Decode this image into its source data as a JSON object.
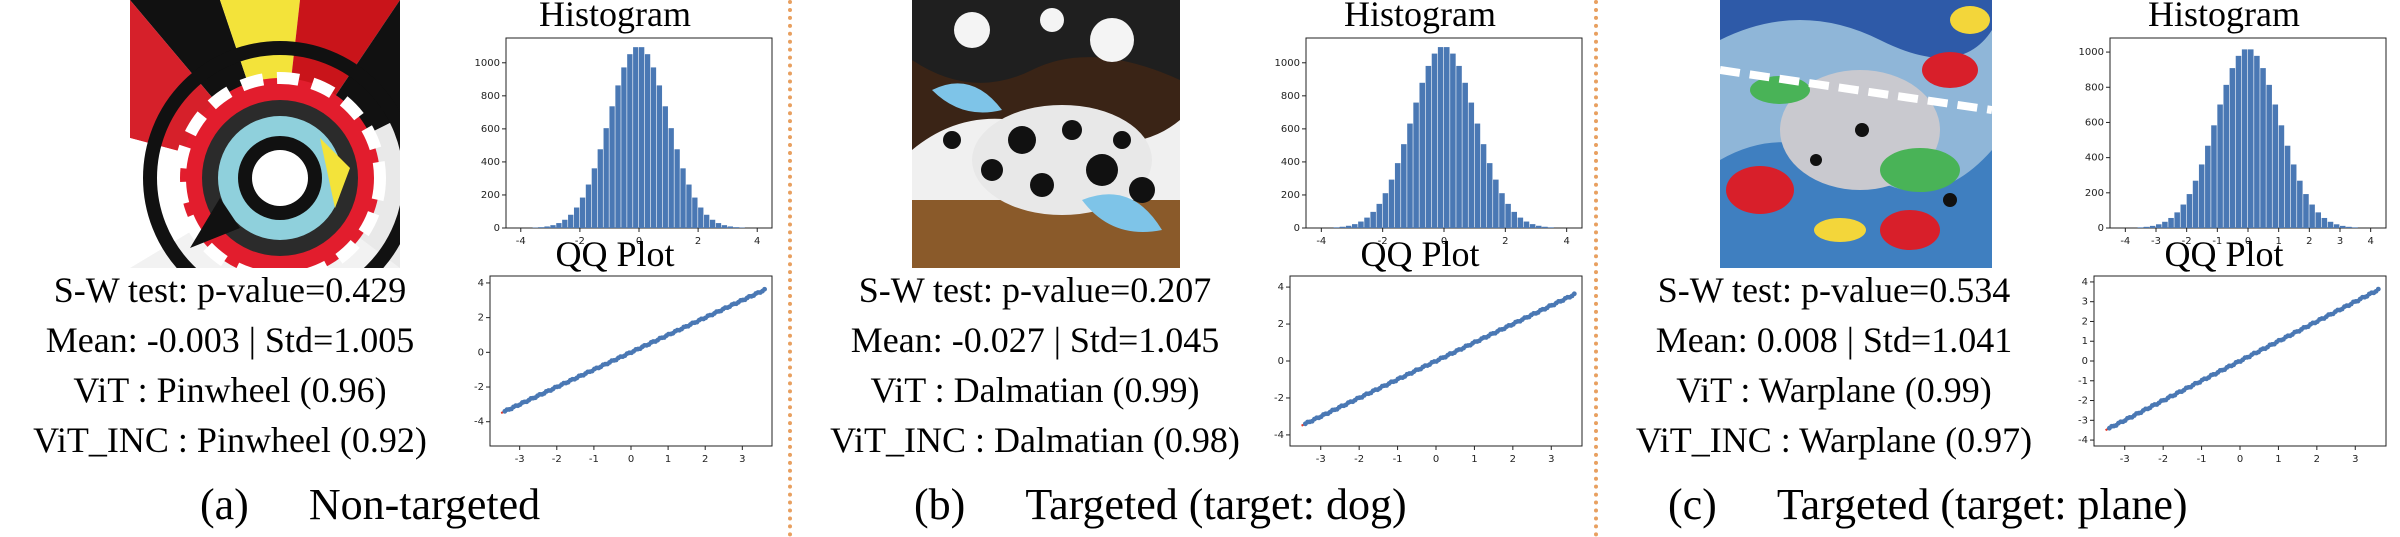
{
  "colors": {
    "bar": "#4a78b4",
    "qq_points": "#4a78b4",
    "qq_line": "#e23b2e",
    "divider": "#e8a060"
  },
  "panels": [
    {
      "image_subject": "pinwheel adversarial image",
      "histogram_title": "Histogram",
      "qq_title": "QQ Plot",
      "stats": {
        "sw": "S-W test: p-value=0.429",
        "mean_std": "Mean: -0.003 | Std=1.005",
        "vit": "ViT : Pinwheel (0.96)",
        "vit_inc": "ViT_INC : Pinwheel (0.92)"
      },
      "caption_letter": "(a)",
      "caption_text": "Non-targeted"
    },
    {
      "image_subject": "dalmatian adversarial image",
      "histogram_title": "Histogram",
      "qq_title": "QQ Plot",
      "stats": {
        "sw": "S-W test: p-value=0.207",
        "mean_std": "Mean: -0.027 | Std=1.045",
        "vit": "ViT : Dalmatian (0.99)",
        "vit_inc": "ViT_INC : Dalmatian (0.98)"
      },
      "caption_letter": "(b)",
      "caption_text": "Targeted (target: dog)"
    },
    {
      "image_subject": "warplane adversarial image",
      "histogram_title": "Histogram",
      "qq_title": "QQ Plot",
      "stats": {
        "sw": "S-W test: p-value=0.534",
        "mean_std": "Mean: 0.008 | Std=1.041",
        "vit": "ViT : Warplane (0.99)",
        "vit_inc": "ViT_INC : Warplane (0.97)"
      },
      "caption_letter": "(c)",
      "caption_text": "Targeted (target: plane)"
    }
  ],
  "chart_data": [
    {
      "type": "bar",
      "title": "Histogram",
      "panel": "a",
      "bins_center": 0,
      "bins_sd": 1.005,
      "peak": 1100,
      "xticks": [
        "-4",
        "-2",
        "0",
        "2",
        "4"
      ],
      "yticks": [
        "0",
        "200",
        "400",
        "600",
        "800",
        "1000"
      ],
      "xlim": [
        -4.5,
        4.5
      ],
      "ylim": [
        0,
        1150
      ]
    },
    {
      "type": "scatter",
      "title": "QQ Plot",
      "panel": "a",
      "xticks": [
        "-3",
        "-2",
        "-1",
        "0",
        "1",
        "2",
        "3"
      ],
      "yticks": [
        "-4",
        "-2",
        "0",
        "2",
        "4"
      ],
      "xlim": [
        -3.8,
        3.8
      ],
      "ylim": [
        -5.4,
        4.4
      ],
      "reference_line": "y=x"
    },
    {
      "type": "bar",
      "title": "Histogram",
      "panel": "b",
      "bins_center": 0,
      "bins_sd": 1.045,
      "peak": 1100,
      "xticks": [
        "-4",
        "-2",
        "0",
        "2",
        "4"
      ],
      "yticks": [
        "0",
        "200",
        "400",
        "600",
        "800",
        "1000"
      ],
      "xlim": [
        -4.5,
        4.5
      ],
      "ylim": [
        0,
        1150
      ]
    },
    {
      "type": "scatter",
      "title": "QQ Plot",
      "panel": "b",
      "xticks": [
        "-3",
        "-2",
        "-1",
        "0",
        "1",
        "2",
        "3"
      ],
      "yticks": [
        "-4",
        "-2",
        "0",
        "2",
        "4"
      ],
      "xlim": [
        -3.8,
        3.8
      ],
      "ylim": [
        -4.6,
        4.6
      ],
      "reference_line": "y=x"
    },
    {
      "type": "bar",
      "title": "Histogram",
      "panel": "c",
      "bins_center": 0,
      "bins_sd": 1.041,
      "peak": 1020,
      "xticks": [
        "-4",
        "-3",
        "-2",
        "-1",
        "0",
        "1",
        "2",
        "3",
        "4"
      ],
      "yticks": [
        "0",
        "200",
        "400",
        "600",
        "800",
        "1000"
      ],
      "xlim": [
        -4.5,
        4.5
      ],
      "ylim": [
        0,
        1080
      ]
    },
    {
      "type": "scatter",
      "title": "QQ Plot",
      "panel": "c",
      "xticks": [
        "-3",
        "-2",
        "-1",
        "0",
        "1",
        "2",
        "3"
      ],
      "yticks": [
        "-4",
        "-3",
        "-2",
        "-1",
        "0",
        "1",
        "2",
        "3",
        "4"
      ],
      "xlim": [
        -3.8,
        3.8
      ],
      "ylim": [
        -4.3,
        4.3
      ],
      "reference_line": "y=x"
    }
  ]
}
